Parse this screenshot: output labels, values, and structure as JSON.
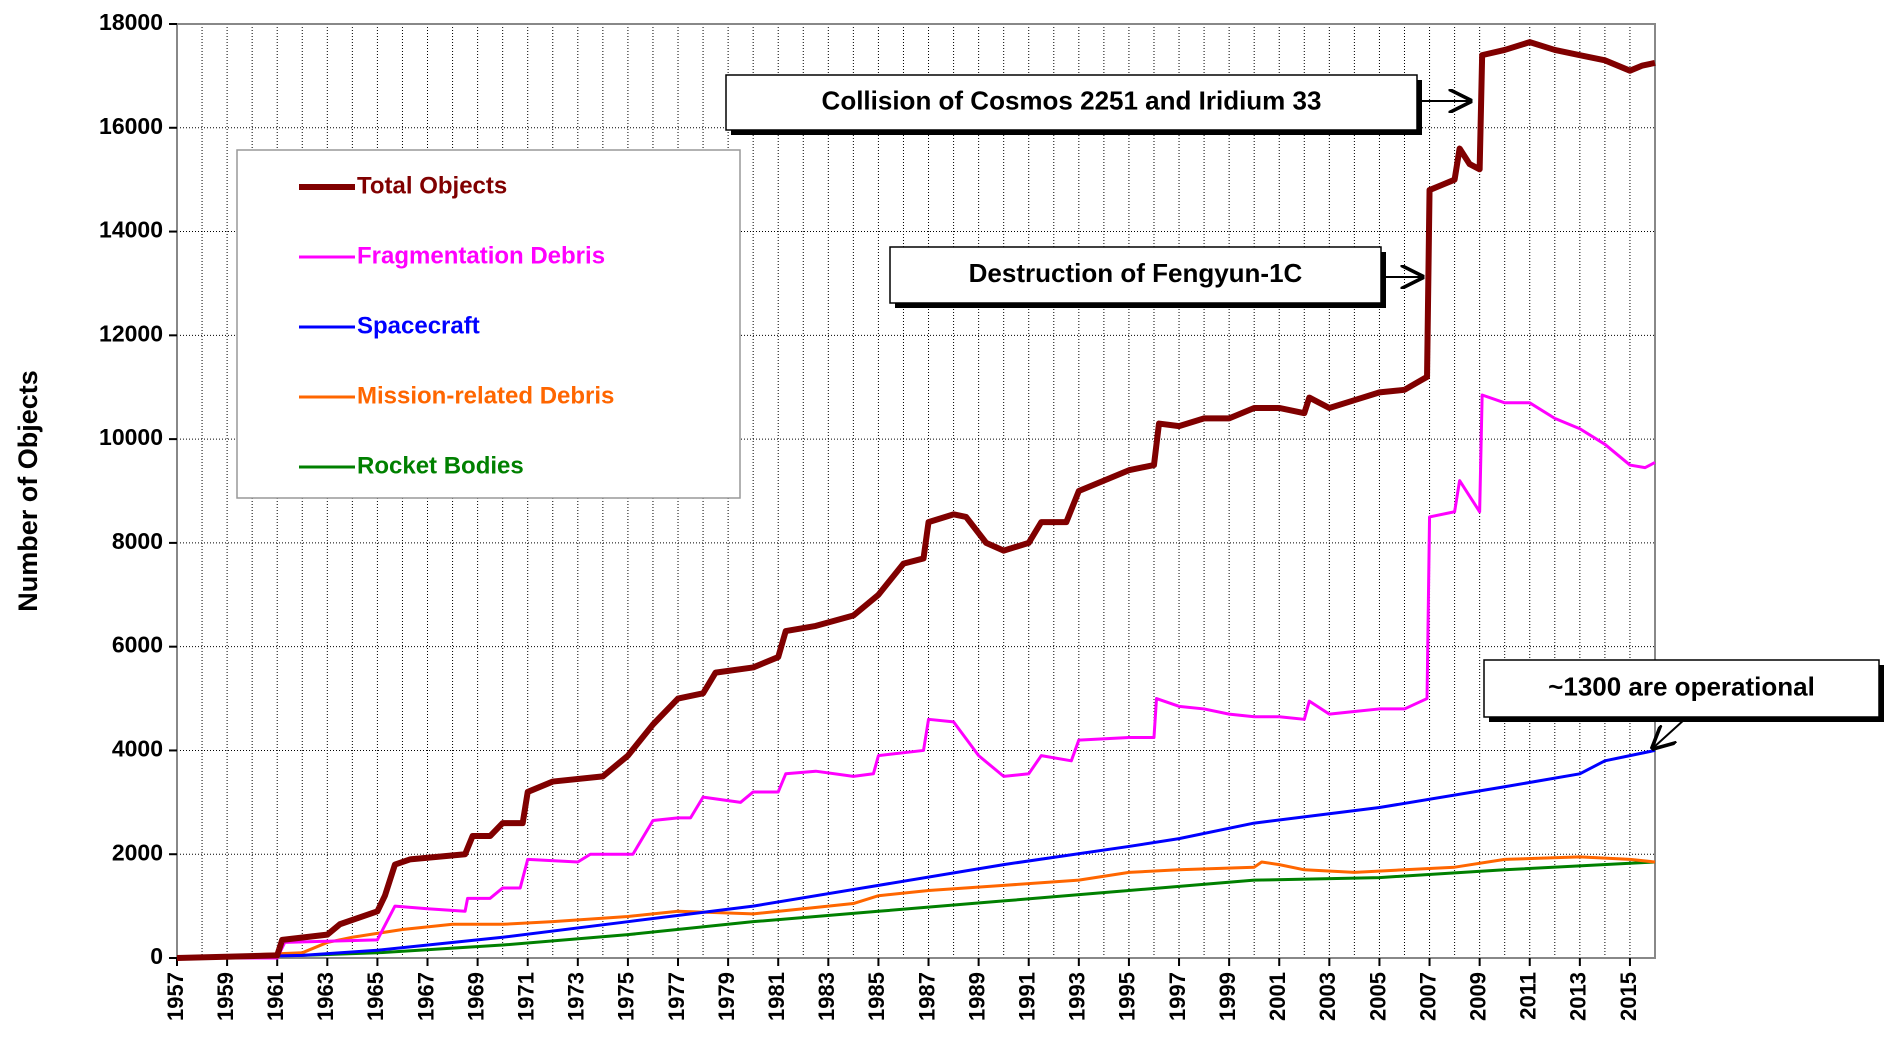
{
  "chart_data": {
    "type": "line",
    "ylabel": "Number of Objects",
    "xlim": [
      1957,
      2016
    ],
    "ylim": [
      0,
      18000
    ],
    "xticks": [
      1957,
      1959,
      1961,
      1963,
      1965,
      1967,
      1969,
      1971,
      1973,
      1975,
      1977,
      1979,
      1981,
      1983,
      1985,
      1987,
      1989,
      1991,
      1993,
      1995,
      1997,
      1999,
      2001,
      2003,
      2005,
      2007,
      2009,
      2011,
      2013,
      2015
    ],
    "xgrid": [
      1957,
      1958,
      1959,
      1960,
      1961,
      1962,
      1963,
      1964,
      1965,
      1966,
      1967,
      1968,
      1969,
      1970,
      1971,
      1972,
      1973,
      1974,
      1975,
      1976,
      1977,
      1978,
      1979,
      1980,
      1981,
      1982,
      1983,
      1984,
      1985,
      1986,
      1987,
      1988,
      1989,
      1990,
      1991,
      1992,
      1993,
      1994,
      1995,
      1996,
      1997,
      1998,
      1999,
      2000,
      2001,
      2002,
      2003,
      2004,
      2005,
      2006,
      2007,
      2008,
      2009,
      2010,
      2011,
      2012,
      2013,
      2014,
      2015,
      2016
    ],
    "yticks": [
      0,
      2000,
      4000,
      6000,
      8000,
      10000,
      12000,
      14000,
      16000,
      18000
    ],
    "grid": true,
    "legend": "upper left",
    "series": [
      {
        "name": "Total Objects",
        "color": "#800000",
        "width": 6,
        "x": [
          1957,
          1961,
          1961.2,
          1963,
          1963.5,
          1965,
          1965.3,
          1965.7,
          1966.3,
          1968.5,
          1968.8,
          1969.5,
          1970,
          1970.8,
          1971,
          1972,
          1974,
          1975,
          1976,
          1977,
          1978,
          1978.5,
          1980,
          1981,
          1981.3,
          1982.5,
          1984,
          1985,
          1986,
          1986.8,
          1987,
          1988,
          1988.5,
          1989.3,
          1990,
          1991,
          1991.5,
          1992.5,
          1993,
          1994,
          1995,
          1996,
          1996.2,
          1997,
          1998,
          1999,
          2000,
          2001,
          2002,
          2002.2,
          2003,
          2004,
          2005,
          2006,
          2006.9,
          2007,
          2007.5,
          2008,
          2008.2,
          2008.6,
          2009,
          2009.1,
          2010,
          2011,
          2012,
          2013,
          2014,
          2015,
          2015.5,
          2016
        ],
        "values": [
          0,
          50,
          350,
          450,
          650,
          900,
          1200,
          1800,
          1900,
          2000,
          2350,
          2350,
          2600,
          2600,
          3200,
          3400,
          3500,
          3900,
          4500,
          5000,
          5100,
          5500,
          5600,
          5800,
          6300,
          6400,
          6600,
          7000,
          7600,
          7700,
          8400,
          8550,
          8500,
          8000,
          7850,
          8000,
          8400,
          8400,
          9000,
          9200,
          9400,
          9500,
          10300,
          10250,
          10400,
          10400,
          10600,
          10600,
          10500,
          10800,
          10600,
          10750,
          10900,
          10950,
          11200,
          14800,
          14900,
          15000,
          15600,
          15300,
          15200,
          17400,
          17500,
          17650,
          17500,
          17400,
          17300,
          17100,
          17200,
          17250
        ]
      },
      {
        "name": "Fragmentation Debris",
        "color": "#ff00ff",
        "width": 3,
        "x": [
          1957,
          1961,
          1961.3,
          1965,
          1965.7,
          1967,
          1968.5,
          1968.6,
          1969.5,
          1970,
          1970.7,
          1971,
          1973,
          1973.5,
          1974.8,
          1975.2,
          1976,
          1977,
          1977.5,
          1978,
          1979.5,
          1980,
          1981,
          1981.3,
          1982.5,
          1984,
          1984.8,
          1985,
          1986.8,
          1987,
          1988,
          1989,
          1990,
          1991,
          1991.5,
          1992.7,
          1993,
          1995,
          1996,
          1996.1,
          1997,
          1998,
          1999,
          2000,
          2001,
          2002,
          2002.2,
          2003,
          2004,
          2005,
          2006,
          2006.9,
          2007,
          2008,
          2008.2,
          2008.6,
          2009,
          2009.1,
          2010,
          2011,
          2012,
          2013,
          2014,
          2015,
          2015.6,
          2016
        ],
        "values": [
          0,
          0,
          300,
          350,
          1000,
          950,
          900,
          1150,
          1150,
          1350,
          1350,
          1900,
          1850,
          2000,
          2000,
          2000,
          2650,
          2700,
          2700,
          3100,
          3000,
          3200,
          3200,
          3550,
          3600,
          3500,
          3550,
          3900,
          4000,
          4600,
          4550,
          3900,
          3500,
          3550,
          3900,
          3800,
          4200,
          4250,
          4250,
          5000,
          4850,
          4800,
          4700,
          4650,
          4650,
          4600,
          4950,
          4700,
          4750,
          4800,
          4800,
          5000,
          8500,
          8600,
          9200,
          8900,
          8600,
          10850,
          10700,
          10700,
          10400,
          10200,
          9900,
          9500,
          9450,
          9550
        ]
      },
      {
        "name": "Spacecraft",
        "color": "#0000ff",
        "width": 3,
        "x": [
          1957,
          1962,
          1965,
          1970,
          1975,
          1980,
          1985,
          1990,
          1995,
          1997,
          2000,
          2005,
          2010,
          2013,
          2014,
          2015,
          2016
        ],
        "values": [
          0,
          50,
          150,
          400,
          700,
          1000,
          1400,
          1800,
          2150,
          2300,
          2600,
          2900,
          3300,
          3550,
          3800,
          3900,
          4000
        ]
      },
      {
        "name": "Mission-related Debris",
        "color": "#ff6600",
        "width": 3,
        "x": [
          1957,
          1962,
          1963,
          1964,
          1966,
          1968,
          1970,
          1972,
          1975,
          1977,
          1980,
          1982,
          1984,
          1985,
          1987,
          1990,
          1993,
          1995,
          1997,
          2000,
          2000.3,
          2001,
          2002,
          2004,
          2006,
          2008,
          2010,
          2013,
          2015,
          2016
        ],
        "values": [
          0,
          100,
          300,
          400,
          550,
          650,
          650,
          700,
          800,
          900,
          850,
          950,
          1050,
          1200,
          1300,
          1400,
          1500,
          1650,
          1700,
          1750,
          1850,
          1800,
          1700,
          1650,
          1700,
          1750,
          1900,
          1950,
          1900,
          1850
        ]
      },
      {
        "name": "Rocket Bodies",
        "color": "#008000",
        "width": 3,
        "x": [
          1957,
          1962,
          1965,
          1970,
          1975,
          1980,
          1985,
          1990,
          1995,
          2000,
          2005,
          2010,
          2016
        ],
        "values": [
          0,
          50,
          100,
          250,
          450,
          700,
          900,
          1100,
          1300,
          1500,
          1550,
          1700,
          1850
        ]
      }
    ],
    "annotations": [
      "Collision of Cosmos 2251 and Iridium 33",
      "Destruction of Fengyun-1C",
      "~1300 are operational"
    ]
  }
}
